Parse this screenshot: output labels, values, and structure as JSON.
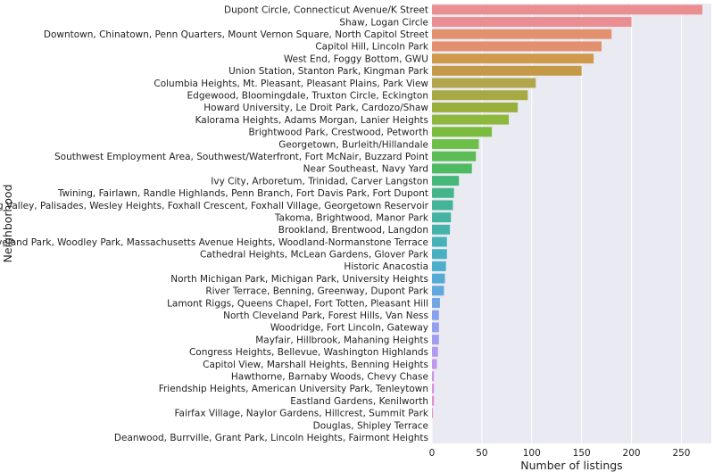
{
  "chart_data": {
    "type": "bar",
    "orientation": "horizontal",
    "xlabel": "Number of listings",
    "ylabel": "Neighborhood",
    "xlim": [
      0,
      280
    ],
    "xticks": [
      0,
      50,
      100,
      150,
      200,
      250
    ],
    "grid": true,
    "legend": "none",
    "categories": [
      "Dupont Circle, Connecticut Avenue/K Street",
      "Shaw, Logan Circle",
      "Downtown, Chinatown, Penn Quarters, Mount Vernon Square, North Capitol Street",
      "Capitol Hill, Lincoln Park",
      "West End, Foggy Bottom, GWU",
      "Union Station, Stanton Park, Kingman Park",
      "Columbia Heights, Mt. Pleasant, Pleasant Plains, Park View",
      "Edgewood, Bloomingdale, Truxton Circle, Eckington",
      "Howard University, Le Droit Park, Cardozo/Shaw",
      "Kalorama Heights, Adams Morgan, Lanier Heights",
      "Brightwood Park, Crestwood, Petworth",
      "Georgetown, Burleith/Hillandale",
      "Southwest Employment Area, Southwest/Waterfront, Fort McNair, Buzzard Point",
      "Near Southeast, Navy Yard",
      "Ivy City, Arboretum, Trinidad, Carver Langston",
      "Twining, Fairlawn, Randle Highlands, Penn Branch, Fort Davis Park, Fort Dupont",
      "Spring Valley, Palisades, Wesley Heights, Foxhall Crescent, Foxhall Village, Georgetown Reservoir",
      "Takoma, Brightwood, Manor Park",
      "Brookland, Brentwood, Langdon",
      "Cleveland Park, Woodley Park, Massachusetts Avenue Heights, Woodland-Normanstone Terrace",
      "Cathedral Heights, McLean Gardens, Glover Park",
      "Historic Anacostia",
      "North Michigan Park, Michigan Park, University Heights",
      "River Terrace, Benning, Greenway, Dupont Park",
      "Lamont Riggs, Queens Chapel, Fort Totten, Pleasant Hill",
      "North Cleveland Park, Forest Hills, Van Ness",
      "Woodridge, Fort Lincoln, Gateway",
      "Mayfair, Hillbrook, Mahaning Heights",
      "Congress Heights, Bellevue, Washington Highlands",
      "Capitol View, Marshall Heights, Benning Heights",
      "Hawthorne, Barnaby Woods, Chevy Chase",
      "Friendship Heights, American University Park, Tenleytown",
      "Eastland Gardens, Kenilworth",
      "Fairfax Village, Naylor Gardens, Hillcrest, Summit Park",
      "Douglas, Shipley Terrace",
      "Deanwood, Burrville, Grant Park, Lincoln Heights, Fairmont Heights"
    ],
    "values": [
      271,
      200,
      180,
      170,
      162,
      150,
      104,
      96,
      86,
      77,
      60,
      47,
      44,
      40,
      27,
      22,
      21,
      19,
      18,
      15,
      15,
      14,
      13,
      12,
      8,
      7,
      7,
      7,
      6,
      5,
      2,
      2,
      2,
      1,
      0,
      0
    ],
    "colors": [
      "#ea8e91",
      "#ea8e91",
      "#e2906d",
      "#e2906d",
      "#d0994c",
      "#c49a48",
      "#b1a64b",
      "#a7a942",
      "#9aae3b",
      "#8db83b",
      "#7bbb3d",
      "#6dbf47",
      "#5cbd55",
      "#4eba62",
      "#45b77a",
      "#44b58a",
      "#43b497",
      "#44b3a1",
      "#45b3ab",
      "#46b2b8",
      "#48b0c0",
      "#4cafcc",
      "#55abd6",
      "#5fa9de",
      "#74a6e4",
      "#86a2ec",
      "#95a0ee",
      "#a29df0",
      "#b19af0",
      "#bf97ed",
      "#cb95e6",
      "#d792dc",
      "#e08fd0",
      "#e58ec6",
      "#e98cbc",
      "#eb8cae"
    ],
    "plot_background": "#eaeaf2",
    "grid_color": "#ffffff"
  }
}
